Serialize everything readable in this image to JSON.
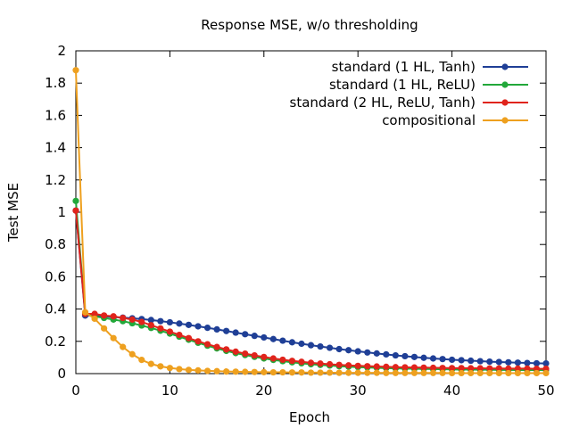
{
  "chart_data": {
    "type": "line",
    "title": "Response MSE, w/o thresholding",
    "xlabel": "Epoch",
    "ylabel": "Test MSE",
    "xlim": [
      0,
      50
    ],
    "ylim": [
      0,
      2
    ],
    "xticks": [
      "0",
      "10",
      "20",
      "30",
      "40",
      "50"
    ],
    "yticks": [
      "0",
      "0.2",
      "0.4",
      "0.6",
      "0.8",
      "1",
      "1.2",
      "1.4",
      "1.6",
      "1.8",
      "2"
    ],
    "grid": false,
    "legend_position": "top-right",
    "x": [
      0,
      1,
      2,
      3,
      4,
      5,
      6,
      7,
      8,
      9,
      10,
      11,
      12,
      13,
      14,
      15,
      16,
      17,
      18,
      19,
      20,
      21,
      22,
      23,
      24,
      25,
      26,
      27,
      28,
      29,
      30,
      31,
      32,
      33,
      34,
      35,
      36,
      37,
      38,
      39,
      40,
      41,
      42,
      43,
      44,
      45,
      46,
      47,
      48,
      49,
      50
    ],
    "series": [
      {
        "name": "standard (1 HL, Tanh)",
        "color": "#1f3f96",
        "values": [
          1.01,
          0.36,
          0.36,
          0.355,
          0.35,
          0.347,
          0.343,
          0.338,
          0.332,
          0.325,
          0.318,
          0.31,
          0.302,
          0.293,
          0.284,
          0.274,
          0.264,
          0.254,
          0.244,
          0.234,
          0.224,
          0.214,
          0.204,
          0.194,
          0.185,
          0.176,
          0.168,
          0.16,
          0.152,
          0.145,
          0.138,
          0.131,
          0.125,
          0.119,
          0.113,
          0.108,
          0.103,
          0.098,
          0.094,
          0.09,
          0.086,
          0.083,
          0.08,
          0.077,
          0.074,
          0.072,
          0.07,
          0.068,
          0.066,
          0.064,
          0.063
        ]
      },
      {
        "name": "standard (1 HL, ReLU)",
        "color": "#22a83a",
        "values": [
          1.07,
          0.37,
          0.355,
          0.345,
          0.335,
          0.325,
          0.312,
          0.298,
          0.283,
          0.266,
          0.248,
          0.229,
          0.21,
          0.191,
          0.173,
          0.156,
          0.141,
          0.127,
          0.115,
          0.104,
          0.094,
          0.085,
          0.077,
          0.07,
          0.064,
          0.058,
          0.054,
          0.05,
          0.046,
          0.043,
          0.04,
          0.038,
          0.036,
          0.034,
          0.032,
          0.031,
          0.03,
          0.029,
          0.028,
          0.027,
          0.026,
          0.025,
          0.025,
          0.024,
          0.024,
          0.023,
          0.023,
          0.022,
          0.022,
          0.022,
          0.022
        ]
      },
      {
        "name": "standard (2 HL, ReLU, Tanh)",
        "color": "#e0241c",
        "values": [
          1.01,
          0.37,
          0.37,
          0.36,
          0.355,
          0.345,
          0.335,
          0.32,
          0.3,
          0.28,
          0.26,
          0.24,
          0.22,
          0.2,
          0.182,
          0.165,
          0.15,
          0.136,
          0.124,
          0.113,
          0.103,
          0.094,
          0.086,
          0.079,
          0.073,
          0.067,
          0.062,
          0.058,
          0.054,
          0.051,
          0.048,
          0.046,
          0.044,
          0.042,
          0.04,
          0.039,
          0.038,
          0.037,
          0.036,
          0.035,
          0.034,
          0.034,
          0.033,
          0.033,
          0.032,
          0.032,
          0.031,
          0.031,
          0.031,
          0.03,
          0.03
        ]
      },
      {
        "name": "compositional",
        "color": "#eea01f",
        "values": [
          1.88,
          0.38,
          0.34,
          0.28,
          0.22,
          0.165,
          0.12,
          0.085,
          0.06,
          0.045,
          0.035,
          0.028,
          0.023,
          0.02,
          0.017,
          0.015,
          0.013,
          0.012,
          0.011,
          0.01,
          0.009,
          0.008,
          0.008,
          0.007,
          0.007,
          0.006,
          0.006,
          0.006,
          0.005,
          0.005,
          0.005,
          0.005,
          0.005,
          0.004,
          0.004,
          0.004,
          0.004,
          0.004,
          0.004,
          0.004,
          0.003,
          0.003,
          0.003,
          0.003,
          0.003,
          0.003,
          0.003,
          0.003,
          0.003,
          0.003,
          0.003
        ]
      }
    ]
  }
}
